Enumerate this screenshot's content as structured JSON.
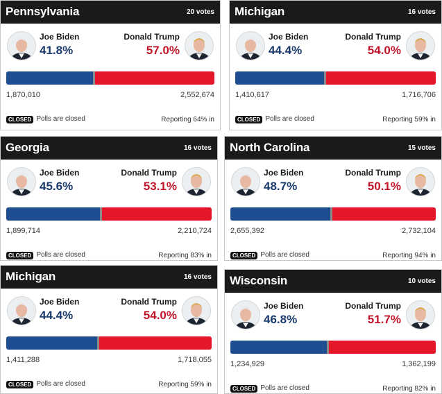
{
  "cards": [
    {
      "state": "Pennsylvania",
      "votes": "20 votes",
      "left": {
        "name": "Joe Biden",
        "pct": "41.8%",
        "count": "1,870,010"
      },
      "right": {
        "name": "Donald Trump",
        "pct": "57.0%",
        "count": "2,552,674"
      },
      "blue_fraction": 0.418,
      "badge": "CLOSED",
      "status": "Polls are closed",
      "reporting": "Reporting 64% in"
    },
    {
      "state": "Michigan",
      "votes": "16 votes",
      "left": {
        "name": "Joe Biden",
        "pct": "44.4%",
        "count": "1,410,617"
      },
      "right": {
        "name": "Donald Trump",
        "pct": "54.0%",
        "count": "1,716,706"
      },
      "blue_fraction": 0.444,
      "badge": "CLOSED",
      "status": "Polls are closed",
      "reporting": "Reporting 59% in"
    },
    {
      "state": "Georgia",
      "votes": "16 votes",
      "left": {
        "name": "Joe Biden",
        "pct": "45.6%",
        "count": "1,899,714"
      },
      "right": {
        "name": "Donald Trump",
        "pct": "53.1%",
        "count": "2,210,724"
      },
      "blue_fraction": 0.456,
      "badge": "CLOSED",
      "status": "Polls are closed",
      "reporting": "Reporting 83% in"
    },
    {
      "state": "North Carolina",
      "votes": "15 votes",
      "left": {
        "name": "Joe Biden",
        "pct": "48.7%",
        "count": "2,655,392"
      },
      "right": {
        "name": "Donald Trump",
        "pct": "50.1%",
        "count": "2,732,104"
      },
      "blue_fraction": 0.487,
      "badge": "CLOSED",
      "status": "Polls are closed",
      "reporting": "Reporting 94% in"
    },
    {
      "state": "Michigan",
      "votes": "16 votes",
      "left": {
        "name": "Joe Biden",
        "pct": "44.4%",
        "count": "1,411,288"
      },
      "right": {
        "name": "Donald Trump",
        "pct": "54.0%",
        "count": "1,718,055"
      },
      "blue_fraction": 0.444,
      "badge": "CLOSED",
      "status": "Polls are closed",
      "reporting": "Reporting 59% in"
    },
    {
      "state": "Wisconsin",
      "votes": "10 votes",
      "left": {
        "name": "Joe Biden",
        "pct": "46.8%",
        "count": "1,234,929"
      },
      "right": {
        "name": "Donald Trump",
        "pct": "51.7%",
        "count": "1,362,199"
      },
      "blue_fraction": 0.468,
      "badge": "CLOSED",
      "status": "Polls are closed",
      "reporting": "Reporting 82% in"
    }
  ],
  "colors": {
    "dem_blue": "#1f4d91",
    "rep_red": "#e4162a",
    "header_bg": "#1a1a1a"
  },
  "icons": {
    "left_avatar": "candidate-photo-icon",
    "right_avatar": "candidate-photo-icon"
  }
}
